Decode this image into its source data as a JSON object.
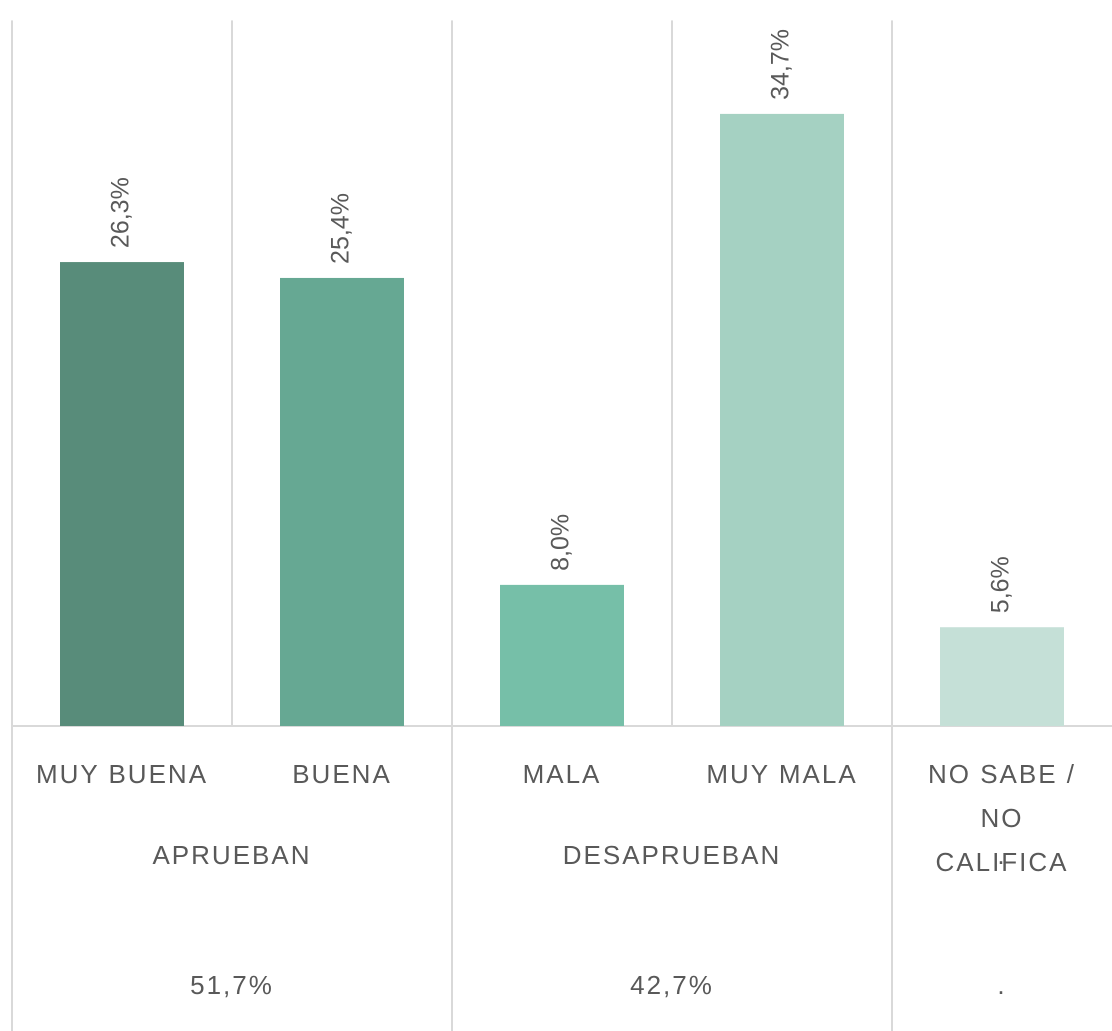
{
  "chart_data": {
    "type": "bar",
    "categories": [
      "MUY BUENA",
      "BUENA",
      "MALA",
      "MUY MALA",
      "NO SABE / NO CALIFICA"
    ],
    "values": [
      26.3,
      25.4,
      8.0,
      34.7,
      5.6
    ],
    "value_labels": [
      "26,3%",
      "25,4%",
      "8,0%",
      "34,7%",
      "5,6%"
    ],
    "colors": [
      "#588c7a",
      "#66a893",
      "#76bfa8",
      "#a5d1c2",
      "#c5e0d7"
    ],
    "ylim": [
      0,
      40
    ],
    "groups": [
      {
        "name": "APRUEBAN",
        "total": "51,7%",
        "size": 2
      },
      {
        "name": "DESAPRUEBAN",
        "total": "42,7%",
        "size": 2
      },
      {
        "name": ".",
        "total": ".",
        "size": 1
      }
    ]
  }
}
